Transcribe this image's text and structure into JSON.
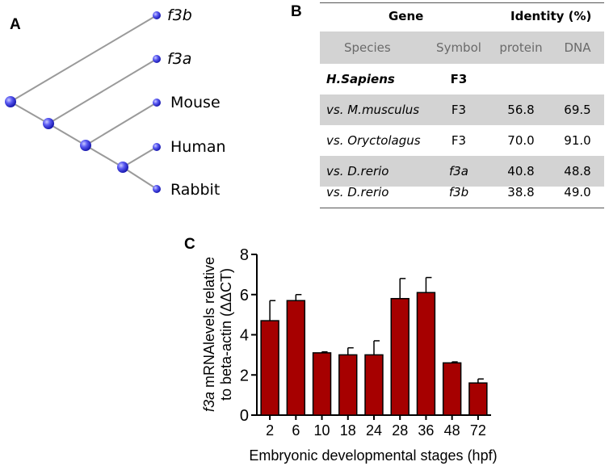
{
  "panels": {
    "a": "A",
    "b": "B",
    "c": "C"
  },
  "tree": {
    "leaves": [
      {
        "label": "f3b",
        "italic": true
      },
      {
        "label": "f3a",
        "italic": true
      },
      {
        "label": "Mouse",
        "italic": false
      },
      {
        "label": "Human",
        "italic": false
      },
      {
        "label": "Rabbit",
        "italic": false
      }
    ],
    "node_color": "#3a3ae8",
    "line_color": "#9a9a9a"
  },
  "table": {
    "header": {
      "gene": "Gene",
      "identity": "Identity (%)"
    },
    "subheader": {
      "species": "Species",
      "symbol": "Symbol",
      "protein": "protein",
      "dna": "DNA"
    },
    "rows": [
      {
        "species": "H.Sapiens",
        "symbol": "F3",
        "protein": "",
        "dna": ""
      },
      {
        "species": "vs. M.musculus",
        "symbol": "F3",
        "protein": "56.8",
        "dna": "69.5"
      },
      {
        "species": "vs. Oryctolagus",
        "symbol": "F3",
        "protein": "70.0",
        "dna": "91.0"
      },
      {
        "species": "vs. D.rerio",
        "symbol": "f3a",
        "protein": "40.8",
        "dna": "48.8"
      },
      {
        "species": "vs. D.rerio",
        "symbol": "f3b",
        "protein": "38.8",
        "dna": "49.0"
      }
    ]
  },
  "chart_data": {
    "type": "bar",
    "title": "",
    "categories": [
      "2",
      "6",
      "10",
      "18",
      "24",
      "28",
      "36",
      "48",
      "72"
    ],
    "values": [
      4.7,
      5.7,
      3.1,
      3.0,
      3.0,
      5.8,
      6.1,
      2.6,
      1.6
    ],
    "errors": [
      1.0,
      0.3,
      0.05,
      0.35,
      0.7,
      1.0,
      0.75,
      0.05,
      0.2
    ],
    "xlabel": "Embryonic developmental stages (hpf)",
    "ylabel_italic": "f3a",
    "ylabel_line1": " mRNAlevels relative",
    "ylabel_line2": "to beta-actin (ΔΔCT)",
    "ylim": [
      0,
      8
    ],
    "yticks": [
      "0",
      "2",
      "4",
      "6",
      "8"
    ],
    "bar_color": "#a60000",
    "grid": false
  }
}
